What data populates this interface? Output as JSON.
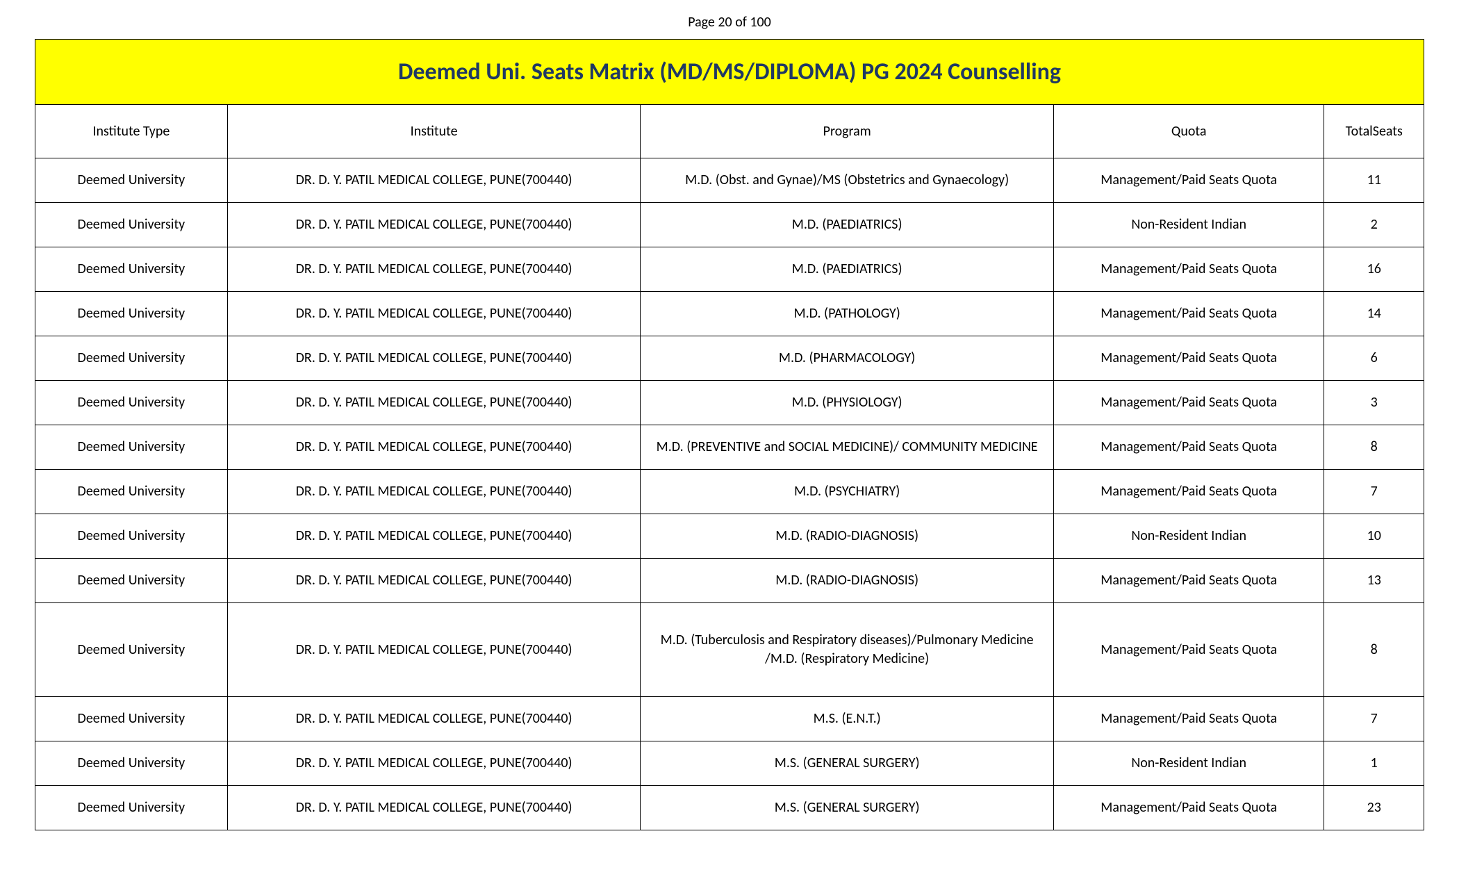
{
  "page_label": "Page 20 of 100",
  "title": "Deemed Uni. Seats Matrix (MD/MS/DIPLOMA) PG 2024 Counselling",
  "title_bg": "#ffff00",
  "title_color": "#1f3864",
  "border_color": "#000000",
  "font_family": "Calibri",
  "columns": [
    {
      "key": "type",
      "label": "Institute Type",
      "width_pct": 13.5
    },
    {
      "key": "inst",
      "label": "Institute",
      "width_pct": 29
    },
    {
      "key": "prog",
      "label": "Program",
      "width_pct": 29
    },
    {
      "key": "quota",
      "label": "Quota",
      "width_pct": 19
    },
    {
      "key": "seats",
      "label": "TotalSeats",
      "width_pct": 7
    }
  ],
  "rows": [
    {
      "type": "Deemed University",
      "inst": "DR. D. Y. PATIL MEDICAL COLLEGE, PUNE(700440)",
      "prog": "M.D. (Obst. and Gynae)/MS (Obstetrics and Gynaecology)",
      "quota": "Management/Paid Seats Quota",
      "seats": "11"
    },
    {
      "type": "Deemed University",
      "inst": "DR. D. Y. PATIL MEDICAL COLLEGE, PUNE(700440)",
      "prog": "M.D. (PAEDIATRICS)",
      "quota": "Non-Resident Indian",
      "seats": "2"
    },
    {
      "type": "Deemed University",
      "inst": "DR. D. Y. PATIL MEDICAL COLLEGE, PUNE(700440)",
      "prog": "M.D. (PAEDIATRICS)",
      "quota": "Management/Paid Seats Quota",
      "seats": "16"
    },
    {
      "type": "Deemed University",
      "inst": "DR. D. Y. PATIL MEDICAL COLLEGE, PUNE(700440)",
      "prog": "M.D. (PATHOLOGY)",
      "quota": "Management/Paid Seats Quota",
      "seats": "14"
    },
    {
      "type": "Deemed University",
      "inst": "DR. D. Y. PATIL MEDICAL COLLEGE, PUNE(700440)",
      "prog": "M.D. (PHARMACOLOGY)",
      "quota": "Management/Paid Seats Quota",
      "seats": "6"
    },
    {
      "type": "Deemed University",
      "inst": "DR. D. Y. PATIL MEDICAL COLLEGE, PUNE(700440)",
      "prog": "M.D. (PHYSIOLOGY)",
      "quota": "Management/Paid Seats Quota",
      "seats": "3"
    },
    {
      "type": "Deemed University",
      "inst": "DR. D. Y. PATIL MEDICAL COLLEGE, PUNE(700440)",
      "prog": "M.D. (PREVENTIVE and SOCIAL MEDICINE)/ COMMUNITY MEDICINE",
      "quota": "Management/Paid Seats Quota",
      "seats": "8"
    },
    {
      "type": "Deemed University",
      "inst": "DR. D. Y. PATIL MEDICAL COLLEGE, PUNE(700440)",
      "prog": "M.D. (PSYCHIATRY)",
      "quota": "Management/Paid Seats Quota",
      "seats": "7"
    },
    {
      "type": "Deemed University",
      "inst": "DR. D. Y. PATIL MEDICAL COLLEGE, PUNE(700440)",
      "prog": "M.D. (RADIO-DIAGNOSIS)",
      "quota": "Non-Resident Indian",
      "seats": "10"
    },
    {
      "type": "Deemed University",
      "inst": "DR. D. Y. PATIL MEDICAL COLLEGE, PUNE(700440)",
      "prog": "M.D. (RADIO-DIAGNOSIS)",
      "quota": "Management/Paid Seats Quota",
      "seats": "13"
    },
    {
      "type": "Deemed University",
      "inst": "DR. D. Y. PATIL MEDICAL COLLEGE, PUNE(700440)",
      "prog": "M.D. (Tuberculosis and Respiratory diseases)/Pulmonary Medicine /M.D. (Respiratory Medicine)",
      "quota": "Management/Paid Seats Quota",
      "seats": "8",
      "tall": true
    },
    {
      "type": "Deemed University",
      "inst": "DR. D. Y. PATIL MEDICAL COLLEGE, PUNE(700440)",
      "prog": "M.S. (E.N.T.)",
      "quota": "Management/Paid Seats Quota",
      "seats": "7"
    },
    {
      "type": "Deemed University",
      "inst": "DR. D. Y. PATIL MEDICAL COLLEGE, PUNE(700440)",
      "prog": "M.S. (GENERAL SURGERY)",
      "quota": "Non-Resident Indian",
      "seats": "1"
    },
    {
      "type": "Deemed University",
      "inst": "DR. D. Y. PATIL MEDICAL COLLEGE, PUNE(700440)",
      "prog": "M.S. (GENERAL SURGERY)",
      "quota": "Management/Paid Seats Quota",
      "seats": "23"
    }
  ]
}
